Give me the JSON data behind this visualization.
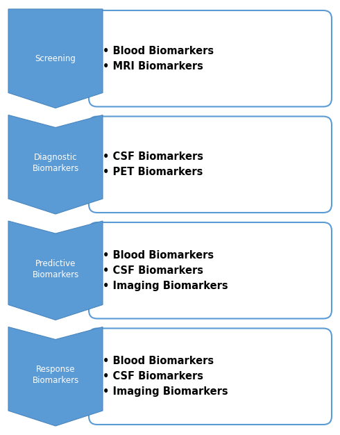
{
  "rows": [
    {
      "label": "Screening",
      "bullets": [
        "Blood Biomarkers",
        "MRI Biomarkers"
      ]
    },
    {
      "label": "Diagnostic\nBiomarkers",
      "bullets": [
        "CSF Biomarkers",
        "PET Biomarkers"
      ]
    },
    {
      "label": "Predictive\nBiomarkers",
      "bullets": [
        "Blood Biomarkers",
        "CSF Biomarkers",
        "Imaging Biomarkers"
      ]
    },
    {
      "label": "Response\nBiomarkers",
      "bullets": [
        "Blood Biomarkers",
        "CSF Biomarkers",
        "Imaging Biomarkers"
      ]
    }
  ],
  "arrow_color": "#5B9BD5",
  "arrow_outline": "#4A86BE",
  "box_outline": "#5B9BD5",
  "box_fill": "#FFFFFF",
  "label_text_color": "#FFFFFF",
  "bullet_text_color": "#000000",
  "background_color": "#FFFFFF",
  "fig_width": 4.9,
  "fig_height": 6.26
}
